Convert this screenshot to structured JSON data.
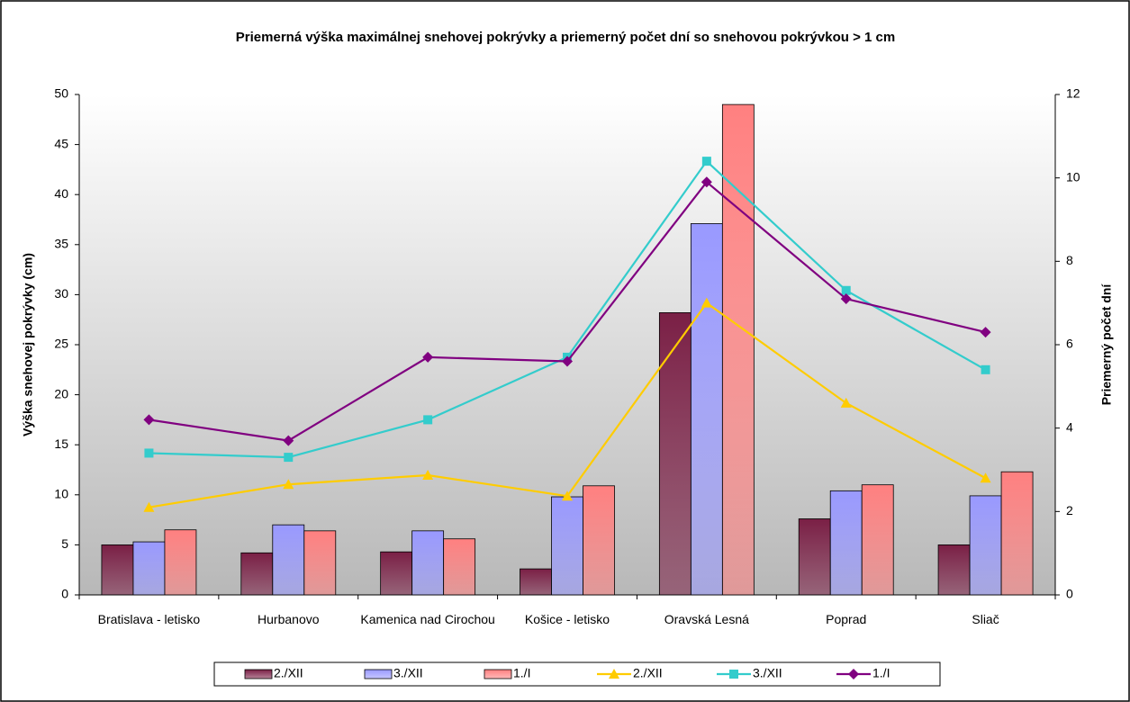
{
  "chart_data": {
    "type": "bar",
    "title": "Priemerná výška maximálnej snehovej pokrývky a priemerný počet dní so snehovou pokrývkou  > 1 cm",
    "ylabel": "Výška snehovej pokrývky (cm)",
    "y2label": "Priemerný počet dní",
    "categories": [
      "Bratislava - letisko",
      "Hurbanovo",
      "Kamenica nad Cirochou",
      "Košice - letisko",
      "Oravská Lesná",
      "Poprad",
      "Sliač"
    ],
    "series": [
      {
        "name": "2./XII",
        "type": "bar",
        "color": "#7a1f45",
        "values": [
          5.0,
          4.2,
          4.3,
          2.6,
          28.2,
          7.6,
          5.0
        ]
      },
      {
        "name": "3./XII",
        "type": "bar",
        "color": "#9999ff",
        "values": [
          5.3,
          7.0,
          6.4,
          9.8,
          37.1,
          10.4,
          9.9
        ]
      },
      {
        "name": "1./I",
        "type": "bar",
        "color": "#ff8080",
        "values": [
          6.5,
          6.4,
          5.6,
          10.9,
          49.0,
          11.0,
          12.3
        ]
      },
      {
        "name": "2./XII",
        "type": "line",
        "axis": "y2",
        "marker": "triangle",
        "color": "#ffcc00",
        "values": [
          2.1,
          2.65,
          2.87,
          2.37,
          7.0,
          4.6,
          2.8
        ]
      },
      {
        "name": "3./XII",
        "type": "line",
        "axis": "y2",
        "marker": "square",
        "color": "#33cccc",
        "values": [
          3.4,
          3.3,
          4.2,
          5.7,
          10.4,
          7.3,
          5.4
        ]
      },
      {
        "name": "1./I",
        "type": "line",
        "axis": "y2",
        "marker": "diamond",
        "color": "#800080",
        "values": [
          4.2,
          3.7,
          5.7,
          5.6,
          9.9,
          7.1,
          6.3
        ]
      }
    ],
    "ylim": [
      0,
      50
    ],
    "yticks": [
      0,
      5,
      10,
      15,
      20,
      25,
      30,
      35,
      40,
      45,
      50
    ],
    "y2lim": [
      0,
      12
    ],
    "y2ticks": [
      0,
      2,
      4,
      6,
      8,
      10,
      12
    ],
    "grid": false,
    "legend": "bottom"
  }
}
